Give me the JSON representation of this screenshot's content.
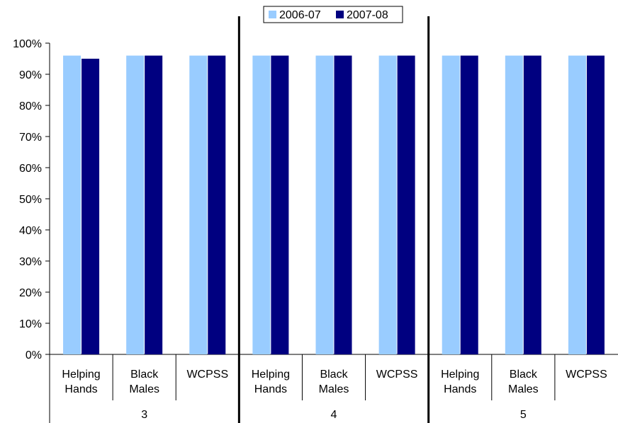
{
  "chart_data": {
    "type": "bar",
    "title": "",
    "xlabel": "",
    "ylabel": "",
    "ylim": [
      0,
      100
    ],
    "y_ticks": [
      "0%",
      "10%",
      "20%",
      "30%",
      "40%",
      "50%",
      "60%",
      "70%",
      "80%",
      "90%",
      "100%"
    ],
    "grid": false,
    "legend_position": "top-center",
    "groups": [
      {
        "label": "3",
        "categories": [
          [
            "Helping",
            "Hands"
          ],
          [
            "Black",
            "Males"
          ],
          [
            "WCPSS"
          ]
        ],
        "series": [
          {
            "name": "2006-07",
            "values": [
              96,
              96,
              96
            ]
          },
          {
            "name": "2007-08",
            "values": [
              95,
              96,
              96
            ]
          }
        ]
      },
      {
        "label": "4",
        "categories": [
          [
            "Helping",
            "Hands"
          ],
          [
            "Black",
            "Males"
          ],
          [
            "WCPSS"
          ]
        ],
        "series": [
          {
            "name": "2006-07",
            "values": [
              96,
              96,
              96
            ]
          },
          {
            "name": "2007-08",
            "values": [
              96,
              96,
              96
            ]
          }
        ]
      },
      {
        "label": "5",
        "categories": [
          [
            "Helping",
            "Hands"
          ],
          [
            "Black",
            "Males"
          ],
          [
            "WCPSS"
          ]
        ],
        "series": [
          {
            "name": "2006-07",
            "values": [
              96,
              96,
              96
            ]
          },
          {
            "name": "2007-08",
            "values": [
              96,
              96,
              96
            ]
          }
        ]
      }
    ],
    "legend": [
      {
        "name": "2006-07",
        "color": "#99ccff"
      },
      {
        "name": "2007-08",
        "color": "#000080"
      }
    ]
  }
}
